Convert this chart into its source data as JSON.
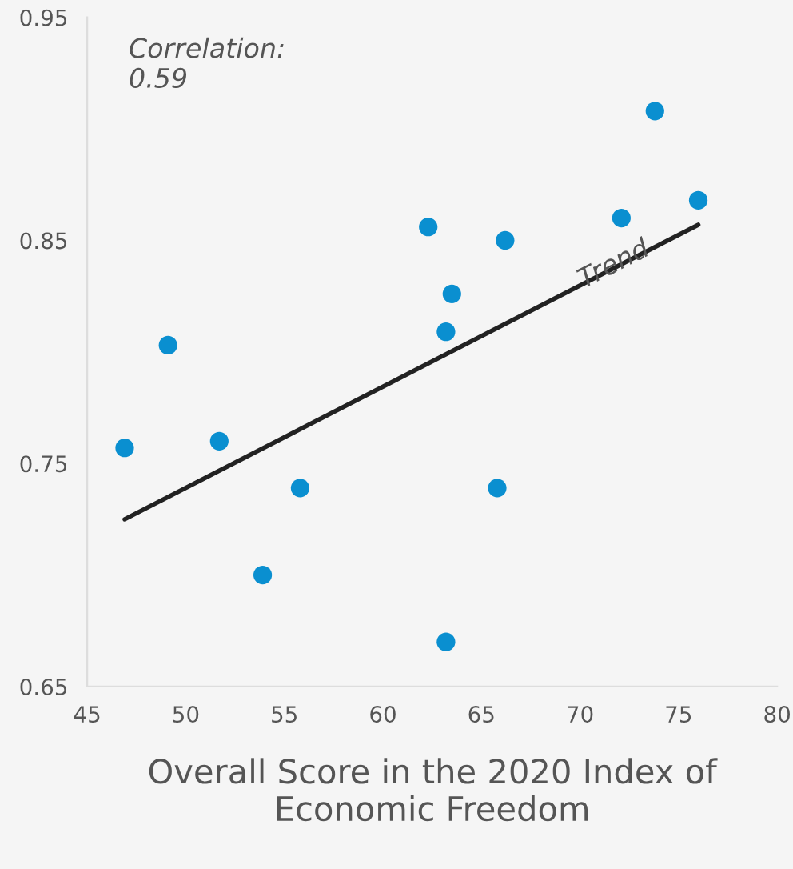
{
  "chart_data": {
    "type": "scatter",
    "xlabel": "Overall Score in the 2020 Index of Economic Freedom",
    "xlim": [
      45,
      80
    ],
    "xticks": [
      45,
      50,
      55,
      60,
      65,
      70,
      75,
      80
    ],
    "ylim": [
      0.65,
      0.95
    ],
    "yticks": [
      0.65,
      0.75,
      0.85,
      0.95
    ],
    "grid": false,
    "series": [
      {
        "marker": "circle",
        "color": "#0a8fd0",
        "x": [
          46.9,
          49.1,
          51.7,
          53.9,
          55.8,
          62.3,
          63.2,
          63.5,
          63.2,
          65.8,
          66.2,
          72.1,
          73.8,
          76.0
        ],
        "values": [
          0.757,
          0.803,
          0.76,
          0.7,
          0.739,
          0.856,
          0.809,
          0.826,
          0.67,
          0.739,
          0.85,
          0.86,
          0.908,
          0.868
        ]
      },
      {
        "type": "line",
        "name": "Trend",
        "color": "#222222",
        "x": [
          46.9,
          76.0
        ],
        "values": [
          0.725,
          0.857
        ]
      }
    ],
    "annotations": [
      "Correlation:\n0.59"
    ]
  }
}
